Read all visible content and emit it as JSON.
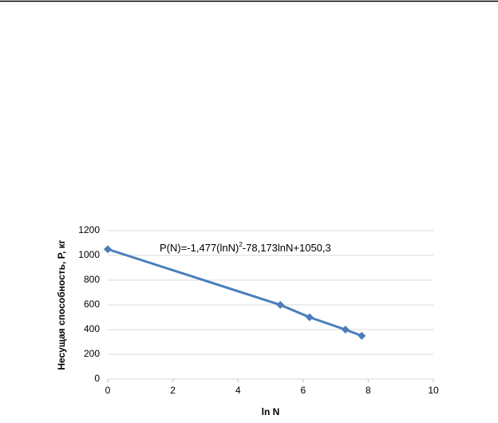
{
  "chart_data": {
    "type": "line",
    "annotation": [
      "P(N)=-1,477(lnN)",
      "2",
      "-78,173lnN+1050,3"
    ],
    "x_label": "ln N",
    "y_label": "Несущая способность, Р, кг",
    "x": [
      0,
      5.3,
      6.2,
      7.3,
      7.8
    ],
    "series": [
      {
        "color": "#4a7ebb",
        "values": [
          1050,
          600,
          500,
          400,
          350
        ]
      }
    ],
    "xlim": [
      0,
      10
    ],
    "xticks": [
      0,
      2,
      4,
      6,
      8,
      10
    ],
    "ylim": [
      0,
      1200
    ],
    "yticks": [
      0,
      200,
      400,
      600,
      800,
      1000,
      1200
    ],
    "grid": true
  }
}
